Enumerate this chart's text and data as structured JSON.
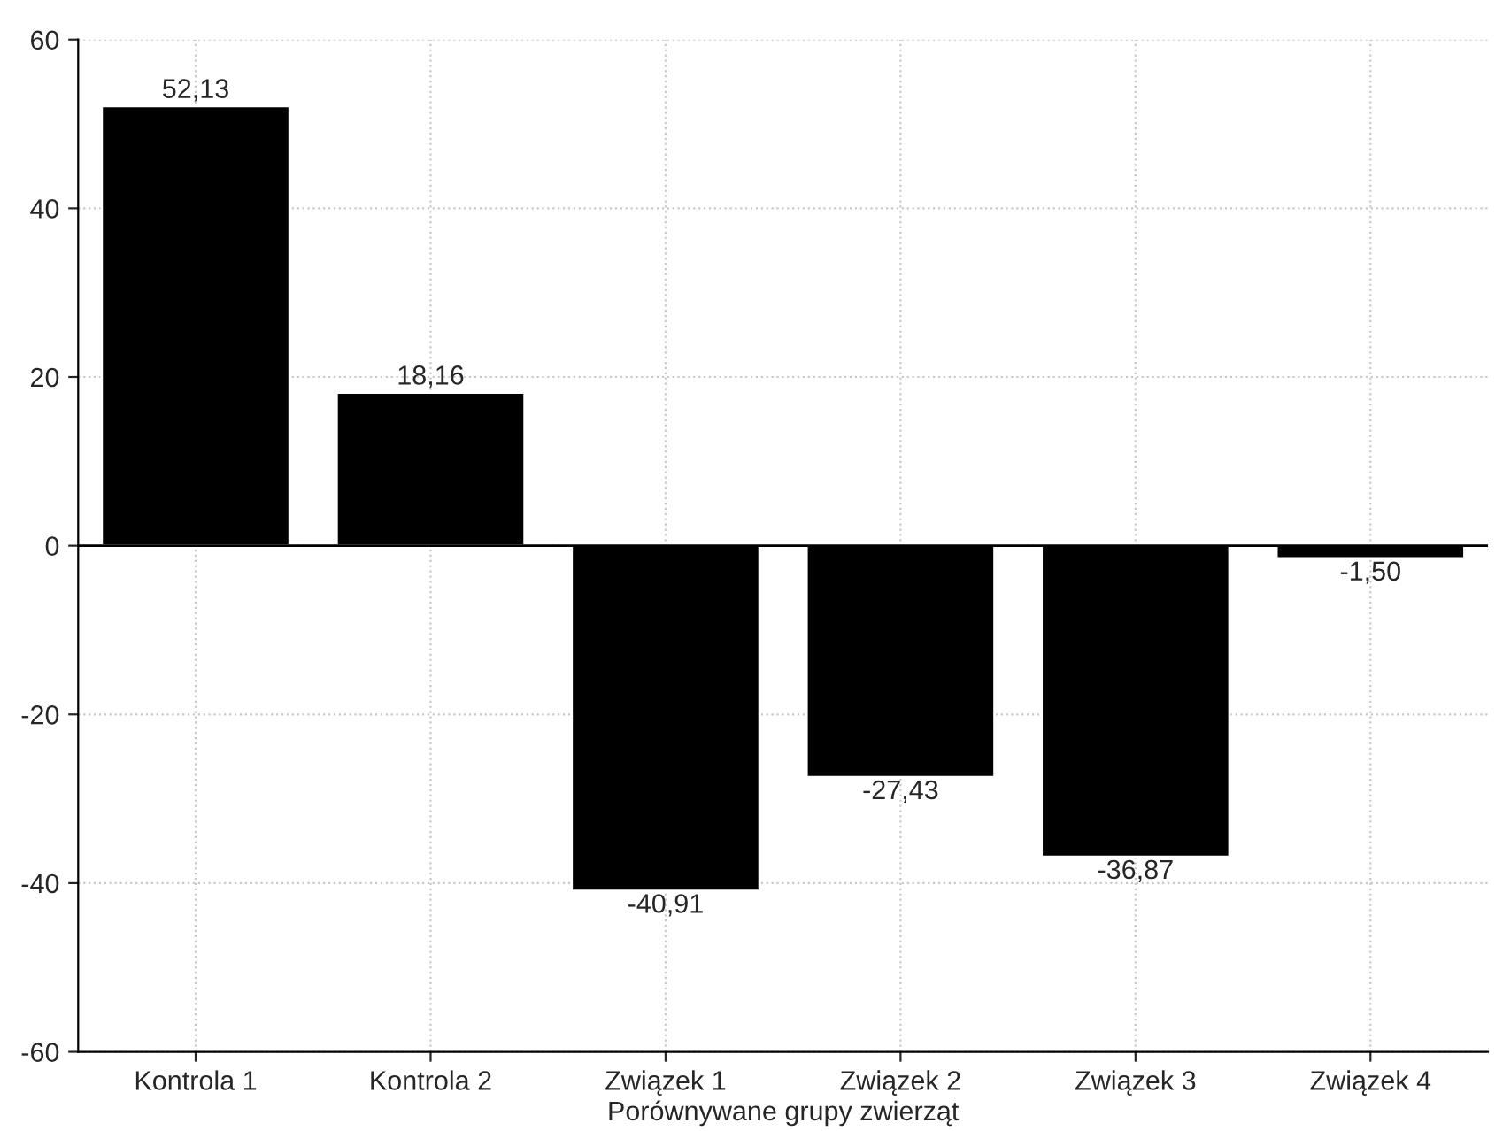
{
  "chart_data": {
    "type": "bar",
    "xlabel": "Porównywane grupy zwierząt",
    "categories": [
      "Kontrola 1",
      "Kontrola 2",
      "Związek 1",
      "Związek 2",
      "Związek 3",
      "Związek 4"
    ],
    "values": [
      52.13,
      18.16,
      -40.91,
      -27.43,
      -36.87,
      -1.5
    ],
    "value_labels": [
      "52,13",
      "18,16",
      "-40,91",
      "-27,43",
      "-36,87",
      "-1,50"
    ],
    "color": "#000000",
    "ylim": [
      -60,
      60
    ],
    "yticks": [
      -60,
      -40,
      -20,
      0,
      20,
      40,
      60
    ],
    "grid": true,
    "legend": false,
    "ref_lines": [
      {
        "axis": "y",
        "value": 0,
        "color": "#000000",
        "line_style": "solid"
      }
    ]
  }
}
